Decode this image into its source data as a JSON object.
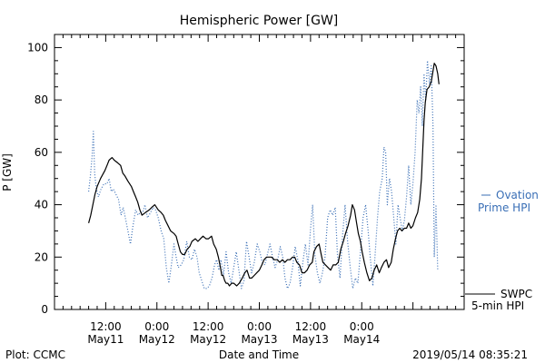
{
  "chart_data": {
    "type": "line",
    "title": "Hemispheric Power [GW]",
    "xlabel": "Date and Time",
    "ylabel": "P [GW]",
    "ylim": [
      0,
      105
    ],
    "yticks": [
      0,
      20,
      40,
      60,
      80,
      100
    ],
    "xlim_hours": [
      0,
      96
    ],
    "xtick_labels": [
      {
        "hour": 12,
        "time": "12:00",
        "date": "May11"
      },
      {
        "hour": 24,
        "time": "0:00",
        "date": "May12"
      },
      {
        "hour": 36,
        "time": "12:00",
        "date": "May12"
      },
      {
        "hour": 48,
        "time": "0:00",
        "date": "May13"
      },
      {
        "hour": 60,
        "time": "12:00",
        "date": "May13"
      },
      {
        "hour": 72,
        "time": "0:00",
        "date": "May14"
      }
    ],
    "grid": false,
    "legend_position": "right",
    "series": [
      {
        "name": "SWPC 5-min HPI",
        "style": "solid",
        "color": "#000000",
        "points": [
          [
            8,
            33
          ],
          [
            8.5,
            36
          ],
          [
            9.5,
            44
          ],
          [
            10,
            47
          ],
          [
            10.8,
            50
          ],
          [
            11.8,
            53
          ],
          [
            12.3,
            55
          ],
          [
            12.8,
            57
          ],
          [
            13.5,
            58
          ],
          [
            14,
            57
          ],
          [
            14.8,
            56
          ],
          [
            15.5,
            55
          ],
          [
            16,
            52
          ],
          [
            16.5,
            51
          ],
          [
            17.2,
            49
          ],
          [
            18,
            47
          ],
          [
            18.5,
            45
          ],
          [
            19,
            43
          ],
          [
            19.5,
            41
          ],
          [
            20,
            38
          ],
          [
            20.5,
            36
          ],
          [
            21.3,
            37
          ],
          [
            22.2,
            38
          ],
          [
            22.8,
            39
          ],
          [
            23.5,
            40
          ],
          [
            24.3,
            38
          ],
          [
            25,
            37
          ],
          [
            25.5,
            36
          ],
          [
            26,
            34
          ],
          [
            26.6,
            32
          ],
          [
            27.2,
            30
          ],
          [
            28,
            29
          ],
          [
            28.5,
            28
          ],
          [
            29,
            25
          ],
          [
            29.5,
            22
          ],
          [
            30,
            21
          ],
          [
            30.5,
            21
          ],
          [
            31.1,
            23
          ],
          [
            31.7,
            24
          ],
          [
            32.2,
            26
          ],
          [
            33,
            27
          ],
          [
            33.6,
            26
          ],
          [
            34.2,
            27
          ],
          [
            34.8,
            28
          ],
          [
            35.5,
            27
          ],
          [
            36.1,
            27
          ],
          [
            36.8,
            28
          ],
          [
            37.3,
            25
          ],
          [
            37.9,
            23
          ],
          [
            38.4,
            20
          ],
          [
            38.9,
            16
          ],
          [
            39.2,
            13
          ],
          [
            39.5,
            13
          ],
          [
            39.9,
            11
          ],
          [
            40.2,
            10
          ],
          [
            40.6,
            10
          ],
          [
            41,
            9
          ],
          [
            41.5,
            10
          ],
          [
            42,
            10
          ],
          [
            42.7,
            9
          ],
          [
            43.3,
            10
          ],
          [
            44,
            12
          ],
          [
            44.6,
            14
          ],
          [
            45.1,
            15
          ],
          [
            45.7,
            12
          ],
          [
            46.2,
            12
          ],
          [
            46.8,
            13
          ],
          [
            47.4,
            14
          ],
          [
            48,
            15
          ],
          [
            48.6,
            17
          ],
          [
            49.1,
            19
          ],
          [
            49.7,
            20
          ],
          [
            50.2,
            20
          ],
          [
            50.9,
            20
          ],
          [
            51.5,
            19
          ],
          [
            52.2,
            19
          ],
          [
            52.8,
            18
          ],
          [
            53.4,
            19
          ],
          [
            54,
            18
          ],
          [
            54.6,
            19
          ],
          [
            55.2,
            19
          ],
          [
            55.8,
            20
          ],
          [
            56.3,
            20
          ],
          [
            56.8,
            18
          ],
          [
            57.4,
            17
          ],
          [
            58,
            14
          ],
          [
            58.6,
            14
          ],
          [
            59.2,
            15
          ],
          [
            59.8,
            17
          ],
          [
            60.4,
            18
          ],
          [
            60.8,
            22
          ],
          [
            61.4,
            24
          ],
          [
            62,
            25
          ],
          [
            62.5,
            21
          ],
          [
            62.9,
            18
          ],
          [
            63.5,
            17
          ],
          [
            64.1,
            16
          ],
          [
            64.7,
            15
          ],
          [
            65.3,
            17
          ],
          [
            65.9,
            17
          ],
          [
            66.5,
            18
          ],
          [
            67.1,
            23
          ],
          [
            67.7,
            26
          ],
          [
            68.2,
            29
          ],
          [
            68.8,
            32
          ],
          [
            69.4,
            36
          ],
          [
            69.8,
            40
          ],
          [
            70.3,
            38
          ],
          [
            70.8,
            33
          ],
          [
            71.2,
            29
          ],
          [
            71.7,
            26
          ],
          [
            72.1,
            22
          ],
          [
            72.6,
            18
          ],
          [
            73.2,
            14
          ],
          [
            73.8,
            11
          ],
          [
            74.4,
            12
          ],
          [
            74.9,
            15
          ],
          [
            75.5,
            17
          ],
          [
            76.1,
            14
          ],
          [
            76.6,
            16
          ],
          [
            77.2,
            18
          ],
          [
            77.8,
            19
          ],
          [
            78.3,
            16
          ],
          [
            78.9,
            18
          ],
          [
            79.4,
            23
          ],
          [
            79.9,
            27
          ],
          [
            80.4,
            30
          ],
          [
            80.9,
            31
          ],
          [
            81.4,
            30
          ],
          [
            82,
            31
          ],
          [
            82.5,
            31
          ],
          [
            83,
            33
          ],
          [
            83.5,
            31
          ],
          [
            84,
            32
          ],
          [
            84.6,
            35
          ],
          [
            85.1,
            37
          ],
          [
            85.6,
            42
          ],
          [
            86,
            50
          ],
          [
            86.3,
            61
          ],
          [
            86.6,
            72
          ],
          [
            86.9,
            79
          ],
          [
            87.3,
            84
          ],
          [
            87.8,
            85
          ],
          [
            88.3,
            87
          ],
          [
            88.7,
            91
          ],
          [
            89,
            94
          ],
          [
            89.4,
            93
          ],
          [
            89.8,
            90
          ],
          [
            90.1,
            86
          ]
        ]
      },
      {
        "name": "Ovation Prime HPI",
        "style": "dotted",
        "color": "#3a6fb6",
        "points": [
          [
            8,
            45
          ],
          [
            8.4,
            51
          ],
          [
            8.8,
            58
          ],
          [
            9.1,
            68
          ],
          [
            9.4,
            52
          ],
          [
            9.8,
            46
          ],
          [
            10.3,
            43
          ],
          [
            10.9,
            46
          ],
          [
            11.6,
            48
          ],
          [
            12.3,
            48
          ],
          [
            12.8,
            50
          ],
          [
            13.3,
            45
          ],
          [
            13.8,
            46
          ],
          [
            14.4,
            44
          ],
          [
            15,
            42
          ],
          [
            15.6,
            36
          ],
          [
            16.1,
            39
          ],
          [
            16.6,
            35
          ],
          [
            17.2,
            30
          ],
          [
            17.8,
            25
          ],
          [
            18.3,
            31
          ],
          [
            19,
            38
          ],
          [
            19.6,
            36
          ],
          [
            20.1,
            37
          ],
          [
            20.7,
            37
          ],
          [
            21.2,
            40
          ],
          [
            21.8,
            35
          ],
          [
            22.5,
            37
          ],
          [
            23.1,
            39
          ],
          [
            23.7,
            38
          ],
          [
            24.3,
            35
          ],
          [
            25,
            30
          ],
          [
            25.6,
            27
          ],
          [
            26.2,
            16
          ],
          [
            26.8,
            10
          ],
          [
            27.4,
            17
          ],
          [
            28,
            25
          ],
          [
            28.5,
            20
          ],
          [
            29,
            16
          ],
          [
            29.7,
            17
          ],
          [
            30.3,
            19
          ],
          [
            31,
            26
          ],
          [
            31.6,
            20
          ],
          [
            32.2,
            19
          ],
          [
            32.8,
            23
          ],
          [
            33.4,
            20
          ],
          [
            33.9,
            14
          ],
          [
            34.5,
            11
          ],
          [
            35.1,
            8
          ],
          [
            35.7,
            8
          ],
          [
            36.3,
            9
          ],
          [
            36.9,
            12
          ],
          [
            37.5,
            17
          ],
          [
            38,
            19
          ],
          [
            38.5,
            15
          ],
          [
            39,
            19
          ],
          [
            39.6,
            13
          ],
          [
            40.2,
            22
          ],
          [
            40.8,
            14
          ],
          [
            41.4,
            10
          ],
          [
            42,
            16
          ],
          [
            42.6,
            22
          ],
          [
            43.2,
            15
          ],
          [
            43.8,
            8
          ],
          [
            44.4,
            11
          ],
          [
            45,
            26
          ],
          [
            45.6,
            20
          ],
          [
            46.2,
            14
          ],
          [
            46.8,
            18
          ],
          [
            47.5,
            25
          ],
          [
            48.1,
            22
          ],
          [
            48.7,
            18
          ],
          [
            49.3,
            17
          ],
          [
            49.9,
            21
          ],
          [
            50.5,
            25
          ],
          [
            51.1,
            20
          ],
          [
            51.7,
            16
          ],
          [
            52.3,
            19
          ],
          [
            52.9,
            24
          ],
          [
            53.5,
            20
          ],
          [
            54,
            12
          ],
          [
            54.6,
            8
          ],
          [
            55.2,
            10
          ],
          [
            55.8,
            16
          ],
          [
            56.4,
            24
          ],
          [
            57,
            19
          ],
          [
            57.6,
            9
          ],
          [
            58.2,
            18
          ],
          [
            58.8,
            25
          ],
          [
            59.4,
            17
          ],
          [
            60,
            31
          ],
          [
            60.5,
            40
          ],
          [
            61,
            21
          ],
          [
            61.6,
            14
          ],
          [
            62.2,
            10
          ],
          [
            62.8,
            14
          ],
          [
            63.4,
            20
          ],
          [
            64,
            35
          ],
          [
            64.6,
            38
          ],
          [
            65.2,
            36
          ],
          [
            65.8,
            39
          ],
          [
            66.3,
            21
          ],
          [
            66.9,
            12
          ],
          [
            67.5,
            28
          ],
          [
            68.1,
            40
          ],
          [
            68.7,
            26
          ],
          [
            69.3,
            16
          ],
          [
            69.9,
            8
          ],
          [
            70.5,
            12
          ],
          [
            71.1,
            10
          ],
          [
            71.7,
            22
          ],
          [
            72.3,
            35
          ],
          [
            72.9,
            40
          ],
          [
            73.5,
            30
          ],
          [
            74,
            20
          ],
          [
            74.6,
            9
          ],
          [
            75.1,
            20
          ],
          [
            75.7,
            35
          ],
          [
            76.2,
            45
          ],
          [
            76.8,
            50
          ],
          [
            77.2,
            62
          ],
          [
            77.6,
            60
          ],
          [
            78,
            40
          ],
          [
            78.5,
            50
          ],
          [
            79,
            45
          ],
          [
            79.5,
            35
          ],
          [
            80,
            25
          ],
          [
            80.5,
            40
          ],
          [
            81,
            35
          ],
          [
            81.5,
            30
          ],
          [
            82,
            34
          ],
          [
            82.5,
            43
          ],
          [
            83,
            55
          ],
          [
            83.5,
            40
          ],
          [
            84,
            48
          ],
          [
            84.5,
            60
          ],
          [
            85,
            80
          ],
          [
            85.4,
            75
          ],
          [
            85.8,
            85
          ],
          [
            86.2,
            70
          ],
          [
            86.6,
            90
          ],
          [
            87,
            80
          ],
          [
            87.4,
            95
          ],
          [
            87.9,
            86
          ],
          [
            88.3,
            93
          ],
          [
            88.7,
            70
          ],
          [
            89,
            20
          ],
          [
            89.4,
            40
          ],
          [
            89.8,
            15
          ]
        ]
      }
    ]
  },
  "legend": {
    "ovation_line1": "Ovation",
    "ovation_line2": "Prime HPI",
    "swpc_line1": "SWPC",
    "swpc_line2": "5-min HPI"
  },
  "footer": {
    "left": "Plot: CCMC",
    "right": "2019/05/14 08:35:21"
  },
  "colors": {
    "swpc": "#000000",
    "ovation": "#3a6fb6"
  }
}
